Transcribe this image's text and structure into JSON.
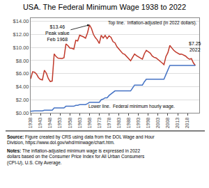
{
  "chart_data": {
    "type": "line",
    "title": "USA. The Federal Minimum Wage 1938 to 2022",
    "x": [
      1938,
      1939,
      1940,
      1941,
      1942,
      1943,
      1944,
      1945,
      1946,
      1947,
      1948,
      1949,
      1950,
      1951,
      1952,
      1953,
      1954,
      1955,
      1956,
      1957,
      1958,
      1959,
      1960,
      1961,
      1962,
      1963,
      1964,
      1965,
      1966,
      1967,
      1968,
      1969,
      1970,
      1971,
      1972,
      1973,
      1974,
      1975,
      1976,
      1977,
      1978,
      1979,
      1980,
      1981,
      1982,
      1983,
      1984,
      1985,
      1986,
      1987,
      1988,
      1989,
      1990,
      1991,
      1992,
      1993,
      1994,
      1995,
      1996,
      1997,
      1998,
      1999,
      2000,
      2001,
      2002,
      2003,
      2004,
      2005,
      2006,
      2007,
      2008,
      2009,
      2010,
      2011,
      2012,
      2013,
      2014,
      2015,
      2016,
      2017,
      2018,
      2019,
      2020,
      2021,
      2022
    ],
    "series": [
      {
        "color": "#c0392b",
        "values": [
          5.19,
          6.28,
          6.22,
          5.93,
          5.39,
          5.11,
          5.03,
          6.52,
          6.07,
          5.26,
          4.79,
          4.87,
          9.02,
          8.6,
          8.36,
          8.33,
          8.32,
          8.44,
          10.54,
          10.29,
          9.92,
          9.88,
          9.74,
          11.09,
          11.01,
          11.88,
          11.79,
          11.62,
          11.43,
          12.24,
          13.46,
          12.93,
          12.02,
          11.51,
          11.16,
          10.61,
          11.87,
          11.43,
          11.86,
          11.36,
          11.78,
          11.54,
          10.9,
          10.72,
          10.13,
          9.74,
          9.37,
          9.07,
          8.94,
          8.61,
          8.27,
          7.96,
          8.49,
          9.0,
          8.76,
          8.52,
          8.38,
          8.22,
          9.04,
          9.57,
          9.38,
          9.14,
          8.69,
          8.49,
          8.4,
          8.18,
          7.96,
          7.65,
          7.37,
          8.61,
          9.2,
          10.31,
          9.93,
          9.56,
          9.32,
          9.17,
          8.97,
          8.99,
          8.88,
          8.69,
          8.41,
          8.21,
          8.29,
          7.65,
          7.25
        ]
      },
      {
        "color": "#4472c4",
        "values": [
          0.25,
          0.3,
          0.3,
          0.3,
          0.3,
          0.3,
          0.3,
          0.4,
          0.4,
          0.4,
          0.4,
          0.4,
          0.75,
          0.75,
          0.75,
          0.75,
          0.75,
          0.75,
          1.0,
          1.0,
          1.0,
          1.0,
          1.0,
          1.15,
          1.15,
          1.25,
          1.25,
          1.25,
          1.25,
          1.4,
          1.6,
          1.6,
          1.6,
          1.6,
          1.6,
          1.6,
          2.0,
          2.1,
          2.3,
          2.3,
          2.65,
          2.9,
          3.1,
          3.35,
          3.35,
          3.35,
          3.35,
          3.35,
          3.35,
          3.35,
          3.35,
          3.35,
          3.8,
          4.25,
          4.25,
          4.25,
          4.25,
          4.25,
          4.75,
          5.15,
          5.15,
          5.15,
          5.15,
          5.15,
          5.15,
          5.15,
          5.15,
          5.15,
          5.15,
          5.85,
          6.55,
          7.25,
          7.25,
          7.25,
          7.25,
          7.25,
          7.25,
          7.25,
          7.25,
          7.25,
          7.25,
          7.25,
          7.25,
          7.25,
          7.25
        ]
      }
    ],
    "xlim": [
      1938,
      2024
    ],
    "xticks": [
      1938,
      1943,
      1948,
      1953,
      1958,
      1963,
      1968,
      1973,
      1978,
      1983,
      1988,
      1993,
      1998,
      2003,
      2008,
      2013,
      2018
    ],
    "ylim": [
      0,
      14.5
    ],
    "yticks": [
      {
        "value": 0,
        "label": "$0.00"
      },
      {
        "value": 2,
        "label": "$2.00"
      },
      {
        "value": 4,
        "label": "$4.00"
      },
      {
        "value": 6,
        "label": "$6.00"
      },
      {
        "value": 8,
        "label": "$8.00"
      },
      {
        "value": 10,
        "label": "$10.00"
      },
      {
        "value": 12,
        "label": "$12.00"
      },
      {
        "value": 14,
        "label": "$14.00"
      }
    ],
    "grid": true,
    "annotation_peak": {
      "text": "$13.46\nPeak value\nFeb 1968",
      "x": 1968,
      "y": 13.46
    },
    "annotation_end": "$7.25\n2022",
    "annotation_nominal_label": "Lower line.  Federal minimum hourly wage.",
    "annotation_inflation_label": "Top line.  Inflation-adjusted (in 2022 dollars).",
    "source_label": "Source:",
    "source_body": " Figure created by CRS using data from the DOL Wage and Hour Division, https://www.dol.gov/whd/minwage/chart.htm.",
    "notes_label": "Notes:",
    "notes_body": " The inflation-adjusted minimum wage is expressed in 2022 dollars based on the Consumer Price Index for All Urban Consumers (CPI-U), U.S. City Average."
  }
}
